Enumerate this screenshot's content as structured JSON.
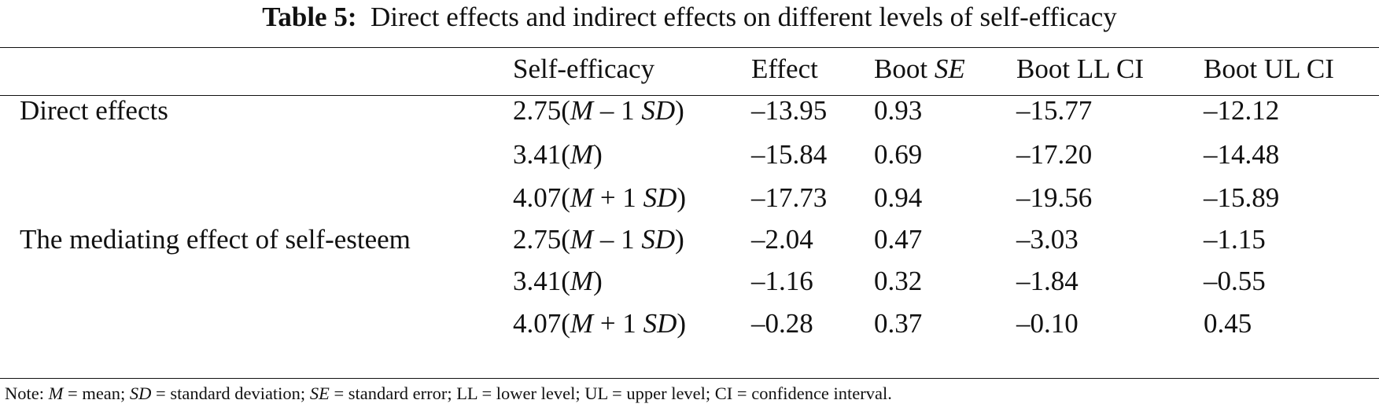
{
  "title": {
    "label": "Table 5:",
    "text": "Direct effects and indirect effects on different levels of self-efficacy"
  },
  "header": {
    "label": "",
    "self_efficacy": "Self-efficacy",
    "effect": "Effect",
    "boot_se_prefix": "Boot ",
    "boot_se_italic": "SE",
    "boot_ll_ci": "Boot LL CI",
    "boot_ul_ci": "Boot UL CI"
  },
  "rows": [
    {
      "label": "Direct effects",
      "se_value": "2.75",
      "se_open": "(",
      "se_m": "M",
      "se_op": " – 1 ",
      "se_sd": "SD",
      "se_close": ")",
      "effect": "–13.95",
      "boot_se": "0.93",
      "ll": "–15.77",
      "ul": "–12.12"
    },
    {
      "label": "",
      "se_value": "3.41",
      "se_open": "(",
      "se_m": "M",
      "se_op": "",
      "se_sd": "",
      "se_close": ")",
      "effect": "–15.84",
      "boot_se": "0.69",
      "ll": "–17.20",
      "ul": "–14.48"
    },
    {
      "label": "",
      "se_value": "4.07",
      "se_open": "(",
      "se_m": "M",
      "se_op": " + 1 ",
      "se_sd": "SD",
      "se_close": ")",
      "effect": "–17.73",
      "boot_se": "0.94",
      "ll": "–19.56",
      "ul": "–15.89"
    },
    {
      "label": "The mediating effect of self-esteem",
      "se_value": "2.75",
      "se_open": "(",
      "se_m": "M",
      "se_op": " – 1 ",
      "se_sd": "SD",
      "se_close": ")",
      "effect": "–2.04",
      "boot_se": "0.47",
      "ll": "–3.03",
      "ul": "–1.15"
    },
    {
      "label": "",
      "se_value": "3.41",
      "se_open": "(",
      "se_m": "M",
      "se_op": "",
      "se_sd": "",
      "se_close": ")",
      "effect": "–1.16",
      "boot_se": "0.32",
      "ll": "–1.84",
      "ul": "–0.55"
    },
    {
      "label": "",
      "se_value": "4.07",
      "se_open": "(",
      "se_m": "M",
      "se_op": " + 1 ",
      "se_sd": "SD",
      "se_close": ")",
      "effect": "–0.28",
      "boot_se": "0.37",
      "ll": "–0.10",
      "ul": "0.45"
    }
  ],
  "note": {
    "prefix": "Note: ",
    "m": "M",
    "t1": " = mean; ",
    "sd": "SD",
    "t2": " = standard deviation; ",
    "se": "SE",
    "t3": " = standard error; LL = lower level; UL = upper level; CI = confidence interval."
  }
}
